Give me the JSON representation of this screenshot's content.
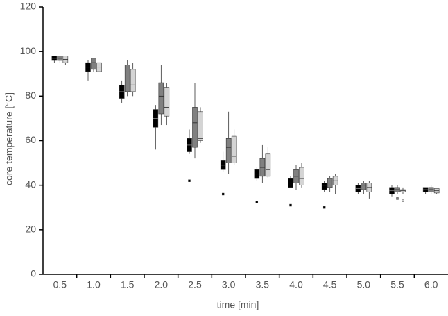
{
  "chart_data": {
    "type": "box",
    "xlabel": "time [min]",
    "ylabel": "core temperature [°C]",
    "categories": [
      "0.5",
      "1.0",
      "1.5",
      "2.0",
      "2.5",
      "3.0",
      "3.5",
      "4.0",
      "4.5",
      "5.0",
      "5.5",
      "6.0"
    ],
    "ylim": [
      0,
      120
    ],
    "yticks": [
      0,
      20,
      40,
      60,
      80,
      100,
      120
    ],
    "series": [
      {
        "color": "#000000",
        "min": [
          95,
          87,
          77,
          56,
          54,
          46,
          42,
          39,
          37,
          36,
          35,
          36
        ],
        "q1": [
          96,
          91,
          79,
          66,
          55,
          47,
          43,
          39,
          38,
          37,
          36,
          37
        ],
        "median": [
          97,
          93,
          82,
          70,
          58,
          49,
          45,
          41,
          40,
          38.5,
          37.5,
          38
        ],
        "q3": [
          98,
          95,
          85,
          74,
          61,
          51,
          47,
          43,
          41,
          40,
          39,
          39
        ],
        "max": [
          98,
          96,
          87,
          76,
          65,
          55,
          48,
          44,
          42,
          41,
          40,
          39
        ],
        "outliers": [
          [],
          [],
          [],
          [],
          [
            42
          ],
          [
            36
          ],
          [
            32.5
          ],
          [
            31
          ],
          [
            30
          ],
          [],
          [],
          []
        ]
      },
      {
        "color": "#808080",
        "min": [
          95,
          91,
          80,
          67,
          52,
          45,
          41,
          38,
          37,
          36,
          36,
          36
        ],
        "q1": [
          96,
          92,
          82,
          72,
          57,
          50,
          44,
          41,
          39,
          38,
          37,
          37
        ],
        "median": [
          97,
          95,
          89,
          80,
          68,
          57,
          48,
          44,
          41,
          40,
          38,
          38
        ],
        "q3": [
          98,
          97,
          94,
          86,
          75,
          61,
          52,
          47,
          43,
          41,
          39,
          39
        ],
        "max": [
          98,
          97,
          96,
          94,
          86,
          73,
          58,
          49,
          44,
          42,
          40,
          40
        ],
        "outliers": [
          [],
          [],
          [],
          [],
          [],
          [],
          [],
          [],
          [],
          [],
          [
            34
          ],
          []
        ]
      },
      {
        "color": "#d4d4d4",
        "min": [
          94,
          91,
          80,
          67,
          59,
          49,
          43,
          39,
          36,
          34,
          36,
          36
        ],
        "q1": [
          95,
          91,
          82,
          71,
          60,
          50,
          44,
          40,
          40,
          37,
          37,
          36.5
        ],
        "median": [
          96.5,
          93,
          85,
          75,
          61,
          53,
          47,
          43,
          42,
          39,
          37.5,
          37.5
        ],
        "q3": [
          98,
          95,
          92,
          84,
          73,
          62,
          54,
          48,
          44,
          41,
          38,
          38.5
        ],
        "max": [
          98,
          95,
          95,
          86,
          75,
          65,
          57,
          50,
          45,
          42,
          39,
          38.5
        ],
        "outliers": [
          [],
          [],
          [],
          [],
          [],
          [],
          [],
          [],
          [],
          [],
          [
            33
          ],
          []
        ]
      }
    ]
  }
}
